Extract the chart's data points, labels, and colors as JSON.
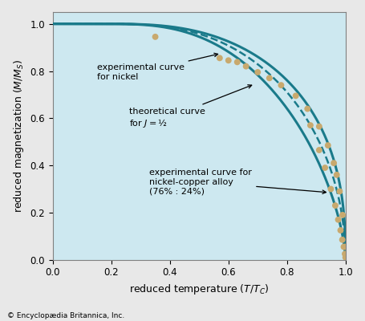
{
  "background_color": "#cde8f0",
  "curve_color": "#1a7a8a",
  "dot_color": "#c8a96e",
  "xlabel": "reduced temperature $(T/T_C)$",
  "ylabel": "reduced magnetization $(M/M_S)$",
  "xlim": [
    0,
    1.0
  ],
  "ylim": [
    0,
    1.05
  ],
  "xticks": [
    0,
    0.2,
    0.4,
    0.6,
    0.8,
    1.0
  ],
  "yticks": [
    0,
    0.2,
    0.4,
    0.6,
    0.8,
    1.0
  ],
  "footnote": "© Encyclopædia Britannica, Inc.",
  "annotation_nickel": "experimental curve\nfor nickel",
  "annotation_theory": "theoretical curve\nfor $J = ½$",
  "annotation_alloy": "experimental curve for\nnickel-copper alloy\n(76% : 24%)",
  "nickel_points_x": [
    0.35,
    0.57,
    0.6,
    0.63,
    0.66,
    0.7,
    0.74,
    0.78,
    0.83,
    0.87,
    0.91,
    0.94,
    0.96,
    0.97,
    0.98,
    0.99,
    1.0
  ],
  "nickel_points_y": [
    0.945,
    0.855,
    0.845,
    0.838,
    0.82,
    0.795,
    0.77,
    0.74,
    0.695,
    0.64,
    0.565,
    0.485,
    0.41,
    0.36,
    0.29,
    0.19,
    0.055
  ],
  "alloy_points_x": [
    0.88,
    0.91,
    0.93,
    0.95,
    0.965,
    0.975,
    0.983,
    0.989,
    0.994,
    0.998,
    1.0
  ],
  "alloy_points_y": [
    0.57,
    0.465,
    0.39,
    0.3,
    0.23,
    0.17,
    0.125,
    0.085,
    0.055,
    0.025,
    0.01
  ]
}
